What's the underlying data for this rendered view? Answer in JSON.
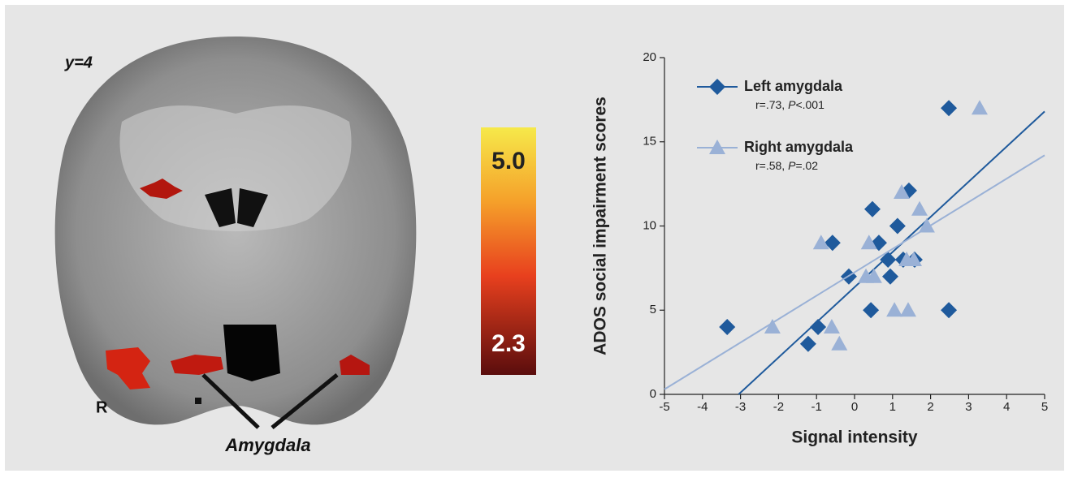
{
  "figure": {
    "slice_label": "y=4",
    "side_label": "R",
    "region_label": "Amygdala",
    "colorbar": {
      "max_label": "5.0",
      "min_label": "2.3"
    }
  },
  "chart_data": {
    "type": "scatter",
    "xlabel": "Signal intensity",
    "ylabel": "ADOS social impairment scores",
    "xlim": [
      -5,
      5
    ],
    "xticks": [
      -5,
      -4,
      -3,
      -2,
      -1,
      0,
      1,
      2,
      3,
      4,
      5
    ],
    "ylim": [
      0,
      20
    ],
    "yticks": [
      0,
      5,
      10,
      15,
      20
    ],
    "series": [
      {
        "name": "Left amygdala",
        "stat": [
          "r=.73, ",
          "P",
          "<.001"
        ],
        "color": "#1f5a9c",
        "marker": "diamond",
        "x": [
          -3.35,
          -1.22,
          -0.96,
          -0.15,
          -0.58,
          0.47,
          0.64,
          0.43,
          0.88,
          0.94,
          1.13,
          1.28,
          1.58,
          1.43,
          2.48,
          2.48
        ],
        "values": [
          4,
          3,
          4,
          7,
          9,
          11,
          9,
          5,
          8,
          7,
          10,
          8,
          8,
          12.1,
          17,
          5
        ],
        "trendline": {
          "x": [
            -3.05,
            5
          ],
          "y": [
            0,
            16.8
          ]
        }
      },
      {
        "name": "Right amygdala",
        "stat": [
          "r=.58, ",
          "P",
          "=.02"
        ],
        "color": "#9ab1d6",
        "marker": "triangle",
        "x": [
          -2.16,
          -0.6,
          -0.4,
          -0.88,
          0.38,
          0.3,
          0.51,
          1.05,
          1.41,
          1.24,
          1.37,
          1.56,
          1.71,
          1.9,
          3.29
        ],
        "values": [
          4,
          4,
          3,
          9,
          9,
          7,
          7,
          5,
          5,
          12,
          8,
          8,
          11,
          10,
          17
        ],
        "trendline": {
          "x": [
            -5,
            5
          ],
          "y": [
            0.3,
            14.2
          ]
        }
      }
    ]
  }
}
